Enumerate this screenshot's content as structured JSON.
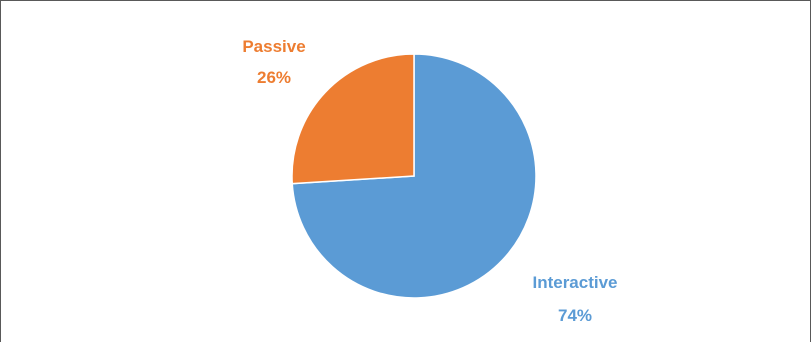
{
  "chart_data": {
    "type": "pie",
    "title": "",
    "slices": [
      {
        "label": "Interactive",
        "value": 74,
        "value_text": "74%",
        "color": "#5b9bd5"
      },
      {
        "label": "Passive",
        "value": 26,
        "value_text": "26%",
        "color": "#ed7d31"
      }
    ],
    "start_angle_deg": 0,
    "direction": "clockwise",
    "legend": "none",
    "data_labels": "outside"
  }
}
